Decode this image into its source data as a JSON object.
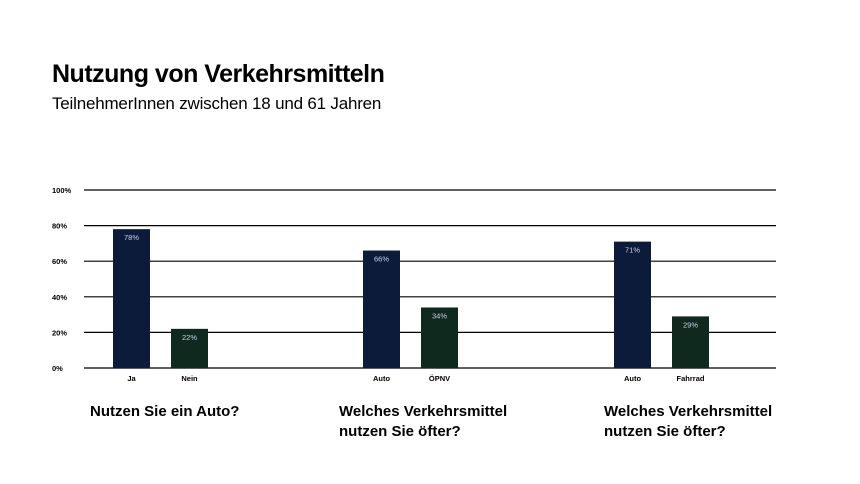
{
  "title": "Nutzung von Verkehrsmitteln",
  "subtitle": "TeilnehmerInnen zwischen 18 und 61 Jahren",
  "colors": {
    "navy": "#0d1b3b",
    "dark_green": "#10291f",
    "value_label": "#c8d2e6",
    "gridline": "#000000"
  },
  "chart_data": {
    "type": "bar",
    "title": "",
    "xlabel": "",
    "ylabel": "",
    "ylim": [
      0,
      100
    ],
    "yticks": [
      "0%",
      "20%",
      "40%",
      "60%",
      "80%",
      "100%"
    ],
    "grid": true,
    "groups": [
      {
        "label": "Nutzen Sie ein Auto?",
        "bars": [
          {
            "category": "Ja",
            "value": 78,
            "label": "78%",
            "color": "#0d1b3b"
          },
          {
            "category": "Nein",
            "value": 22,
            "label": "22%",
            "color": "#10291f"
          }
        ]
      },
      {
        "label": "Welches Verkehrsmittel\nnutzen Sie öfter?",
        "bars": [
          {
            "category": "Auto",
            "value": 66,
            "label": "66%",
            "color": "#0d1b3b"
          },
          {
            "category": "ÖPNV",
            "value": 34,
            "label": "34%",
            "color": "#10291f"
          }
        ]
      },
      {
        "label": "Welches Verkehrsmittel\nnutzen Sie öfter?",
        "bars": [
          {
            "category": "Auto",
            "value": 71,
            "label": "71%",
            "color": "#0d1b3b"
          },
          {
            "category": "Fahrrad",
            "value": 29,
            "label": "29%",
            "color": "#10291f"
          }
        ]
      }
    ]
  }
}
